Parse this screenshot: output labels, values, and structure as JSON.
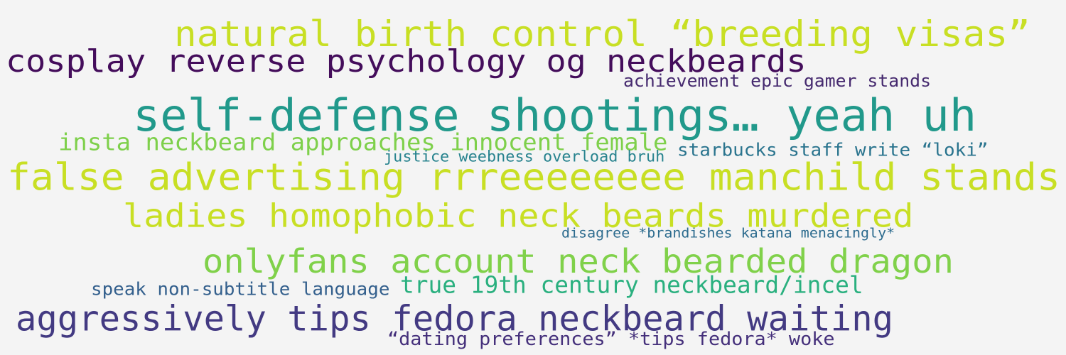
{
  "word_cloud": {
    "phrases": [
      {
        "text": "natural birth control “breeding visas”",
        "color": "#c8df24"
      },
      {
        "text": "cosplay reverse psychology og neckbeards",
        "color": "#440d5b"
      },
      {
        "text": "achievement epic gamer stands",
        "color": "#462a6f"
      },
      {
        "text": "self-defense shootings… yeah uh",
        "color": "#21998b"
      },
      {
        "text": "insta neckbeard approaches innocent female",
        "color": "#7ed04b"
      },
      {
        "text": "justice weebness overload bruh",
        "color": "#27838e"
      },
      {
        "text": "starbucks staff write “loki”",
        "color": "#2a748e"
      },
      {
        "text": "false advertising rrreeeeeeee manchild stands",
        "color": "#c8df24"
      },
      {
        "text": "ladies homophobic neck beards murdered",
        "color": "#c8df24"
      },
      {
        "text": "disagree *brandishes katana menacingly*",
        "color": "#2c6b8e"
      },
      {
        "text": "onlyfans account neck bearded dragon",
        "color": "#80d14a"
      },
      {
        "text": "speak non-subtitle language",
        "color": "#34608d"
      },
      {
        "text": "true 19th century neckbeard/incel",
        "color": "#2ab07f"
      },
      {
        "text": "aggressively tips fedora neckbeard waiting",
        "color": "#433a82"
      },
      {
        "text": "“dating preferences” *tips fedora* woke",
        "color": "#45307b"
      }
    ]
  }
}
